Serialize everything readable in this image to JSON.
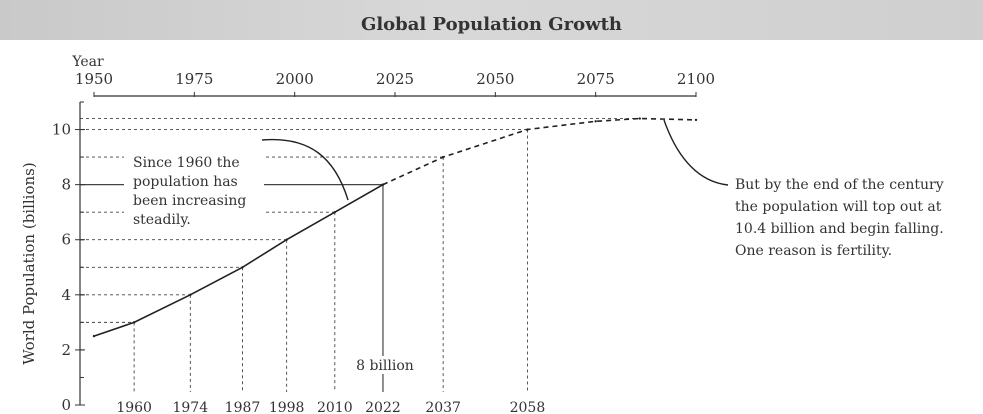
{
  "chart_data": {
    "type": "line",
    "title": "Global Population Growth",
    "xlabel": "Year",
    "ylabel": "World Population (billions)",
    "xlim": [
      1950,
      2100
    ],
    "ylim": [
      0,
      11
    ],
    "x_ticks": [
      1950,
      1975,
      2000,
      2025,
      2050,
      2075,
      2100
    ],
    "y_ticks": [
      0,
      2,
      4,
      6,
      8,
      10
    ],
    "series": [
      {
        "style": "solid",
        "x": [
          1950,
          1960,
          1974,
          1987,
          1998,
          2010,
          2022
        ],
        "y": [
          2.5,
          3.0,
          4.0,
          5.0,
          6.0,
          7.0,
          8.0
        ]
      },
      {
        "style": "dashed",
        "x": [
          2022,
          2037,
          2058,
          2075,
          2086,
          2100
        ],
        "y": [
          8.0,
          9.0,
          10.0,
          10.3,
          10.4,
          10.35
        ]
      }
    ],
    "milestones": [
      {
        "year": 1960,
        "pop": 3,
        "label": "1960"
      },
      {
        "year": 1974,
        "pop": 4,
        "label": "1974"
      },
      {
        "year": 1987,
        "pop": 5,
        "label": "1987"
      },
      {
        "year": 1998,
        "pop": 6,
        "label": "1998"
      },
      {
        "year": 2010,
        "pop": 7,
        "label": "2010"
      },
      {
        "year": 2022,
        "pop": 8,
        "label": "2022"
      },
      {
        "year": 2037,
        "pop": 9,
        "label": "2037"
      },
      {
        "year": 2058,
        "pop": 10,
        "label": "2058"
      }
    ],
    "peak": {
      "year": 2086,
      "pop": 10.4
    },
    "annotations": {
      "left": [
        "Since 1960 the",
        "population has",
        "been increasing",
        "steadily."
      ],
      "right": [
        "But by the end of the century",
        "the population will top out at",
        "10.4 billion and begin falling.",
        "One reason is fertility."
      ],
      "marker": "8 billion"
    }
  }
}
